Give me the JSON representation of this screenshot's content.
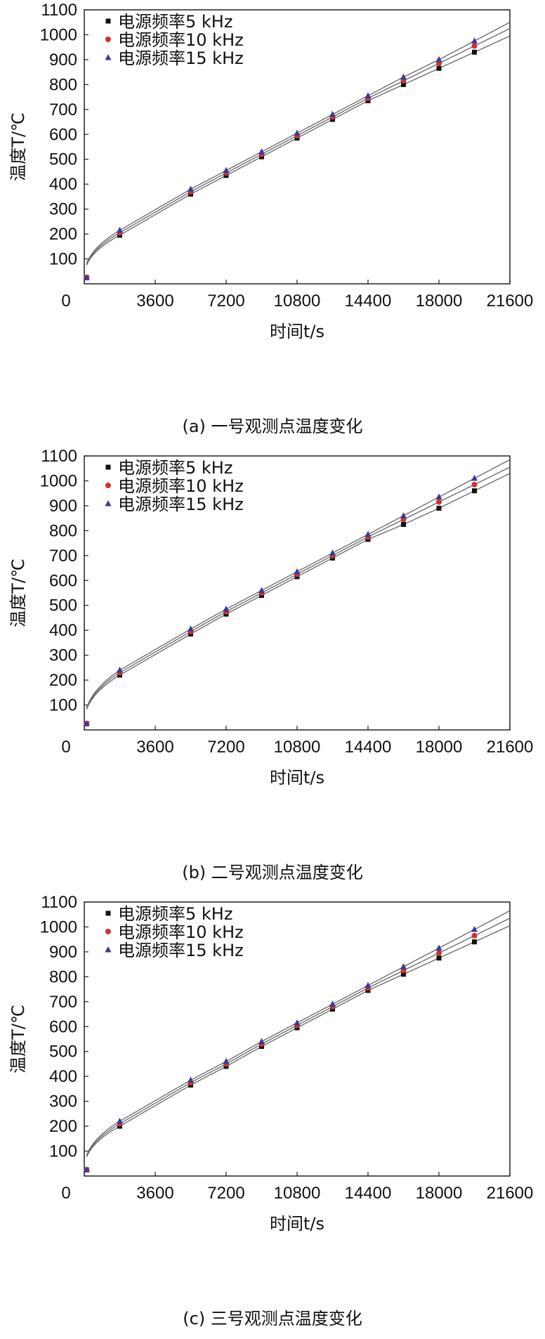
{
  "chart_data": [
    {
      "type": "line",
      "caption": "(a) 一号观测点温度变化",
      "xlabel": "时间t/s",
      "ylabel": "温度T/℃",
      "xlim": [
        0,
        21600
      ],
      "ylim": [
        0,
        1100
      ],
      "xticks": [
        "0",
        "3600",
        "7200",
        "10800",
        "14400",
        "18000",
        "21600"
      ],
      "yticks": [
        "100",
        "200",
        "300",
        "400",
        "500",
        "600",
        "700",
        "800",
        "900",
        "1000",
        "1100"
      ],
      "legend_position": "top-left",
      "x": [
        0,
        1800,
        5400,
        7200,
        9000,
        10800,
        12600,
        14400,
        16200,
        18000,
        19800
      ],
      "series": [
        {
          "name": "电源频率5 kHz",
          "marker": "square",
          "color": "#111111",
          "values": [
            25,
            195,
            360,
            435,
            510,
            585,
            660,
            735,
            800,
            865,
            930
          ]
        },
        {
          "name": "电源频率10 kHz",
          "marker": "circle",
          "color": "#cc3333",
          "values": [
            25,
            205,
            370,
            445,
            520,
            595,
            670,
            745,
            815,
            885,
            955
          ]
        },
        {
          "name": "电源频率15 kHz",
          "marker": "triangle",
          "color": "#3a3a9a",
          "values": [
            25,
            215,
            380,
            455,
            530,
            605,
            680,
            755,
            830,
            900,
            975
          ]
        }
      ]
    },
    {
      "type": "line",
      "caption": "(b) 二号观测点温度变化",
      "xlabel": "时间t/s",
      "ylabel": "温度T/℃",
      "xlim": [
        0,
        21600
      ],
      "ylim": [
        0,
        1100
      ],
      "xticks": [
        "0",
        "3600",
        "7200",
        "10800",
        "14400",
        "18000",
        "21600"
      ],
      "yticks": [
        "100",
        "200",
        "300",
        "400",
        "500",
        "600",
        "700",
        "800",
        "900",
        "1000",
        "1100"
      ],
      "legend_position": "top-left",
      "x": [
        0,
        1800,
        5400,
        7200,
        9000,
        10800,
        12600,
        14400,
        16200,
        18000,
        19800
      ],
      "series": [
        {
          "name": "电源频率5 kHz",
          "marker": "square",
          "color": "#111111",
          "values": [
            25,
            220,
            385,
            465,
            540,
            615,
            690,
            765,
            825,
            890,
            960
          ]
        },
        {
          "name": "电源频率10 kHz",
          "marker": "circle",
          "color": "#cc3333",
          "values": [
            25,
            230,
            395,
            475,
            550,
            625,
            700,
            775,
            845,
            915,
            985
          ]
        },
        {
          "name": "电源频率15 kHz",
          "marker": "triangle",
          "color": "#3a3a9a",
          "values": [
            25,
            240,
            405,
            485,
            560,
            635,
            710,
            785,
            860,
            935,
            1010
          ]
        }
      ]
    },
    {
      "type": "line",
      "caption": "(c) 三号观测点温度变化",
      "xlabel": "时间t/s",
      "ylabel": "温度T/℃",
      "xlim": [
        0,
        21600
      ],
      "ylim": [
        0,
        1100
      ],
      "xticks": [
        "0",
        "3600",
        "7200",
        "10800",
        "14400",
        "18000",
        "21600"
      ],
      "yticks": [
        "100",
        "200",
        "300",
        "400",
        "500",
        "600",
        "700",
        "800",
        "900",
        "1000",
        "1100"
      ],
      "legend_position": "top-left",
      "x": [
        0,
        1800,
        5400,
        7200,
        9000,
        10800,
        12600,
        14400,
        16200,
        18000,
        19800
      ],
      "series": [
        {
          "name": "电源频率5 kHz",
          "marker": "square",
          "color": "#111111",
          "values": [
            25,
            200,
            365,
            440,
            520,
            595,
            670,
            745,
            810,
            875,
            940
          ]
        },
        {
          "name": "电源频率10 kHz",
          "marker": "circle",
          "color": "#cc3333",
          "values": [
            25,
            210,
            375,
            450,
            530,
            605,
            680,
            755,
            825,
            895,
            965
          ]
        },
        {
          "name": "电源频率15 kHz",
          "marker": "triangle",
          "color": "#3a3a9a",
          "values": [
            25,
            220,
            385,
            460,
            540,
            615,
            690,
            765,
            840,
            915,
            990
          ]
        }
      ]
    }
  ]
}
